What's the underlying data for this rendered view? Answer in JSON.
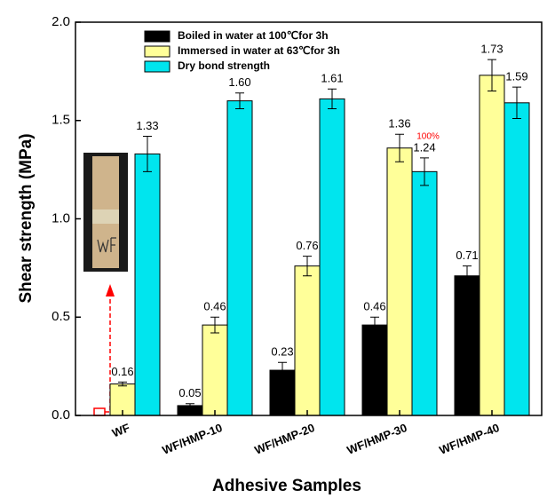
{
  "chart_data": {
    "type": "bar",
    "x_label": "Adhesive Samples",
    "y_label": "Shear strength (MPa)",
    "categories": [
      "WF",
      "WF/HMP-10",
      "WF/HMP-20",
      "WF/HMP-30",
      "WF/HMP-40"
    ],
    "series": [
      {
        "name": "Boiled in water at 100℃for 3h",
        "color": "#000000",
        "values": [
          null,
          0.05,
          0.23,
          0.46,
          0.71
        ],
        "value_labels": [
          null,
          "0.05",
          "0.23",
          "0.46",
          "0.71"
        ],
        "errors": [
          null,
          0.01,
          0.04,
          0.04,
          0.05
        ]
      },
      {
        "name": "Immersed in water at 63℃for 3h",
        "color": "#ffff99",
        "values": [
          0.16,
          0.46,
          0.76,
          1.36,
          1.73
        ],
        "value_labels": [
          "0.16",
          "0.46",
          "0.76",
          "1.36",
          "1.73"
        ],
        "errors": [
          0.01,
          0.04,
          0.05,
          0.07,
          0.08
        ]
      },
      {
        "name": "Dry bond strength",
        "color": "#00e5ee",
        "values": [
          1.33,
          1.6,
          1.61,
          1.24,
          1.59
        ],
        "value_labels": [
          "1.33",
          "1.60",
          "1.61",
          "1.24",
          "1.59"
        ],
        "errors": [
          0.09,
          0.04,
          0.05,
          0.07,
          0.08
        ]
      }
    ],
    "annotations": [
      {
        "text": "100%",
        "color": "#ff0000"
      }
    ],
    "ylim": [
      0,
      2
    ],
    "yticks": [
      {
        "value": 0,
        "label": "0.0"
      },
      {
        "value": 0.5,
        "label": "0.5"
      },
      {
        "value": 1,
        "label": "1.0"
      },
      {
        "value": 1.5,
        "label": "1.5"
      },
      {
        "value": 2,
        "label": "2.0"
      }
    ],
    "legend": "upper left"
  }
}
